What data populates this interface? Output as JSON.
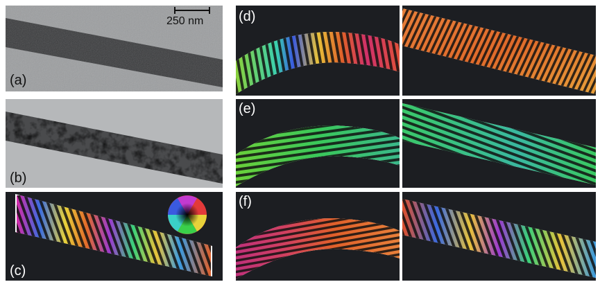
{
  "figure": {
    "panels": {
      "a": {
        "label": "(a)"
      },
      "b": {
        "label": "(b)"
      },
      "c": {
        "label": "(c)"
      },
      "d": {
        "label": "(d)"
      },
      "e": {
        "label": "(e)"
      },
      "f": {
        "label": "(f)"
      }
    },
    "scale_bar": {
      "text": "250 nm"
    },
    "colors": {
      "tem_background": "#9a9c9e",
      "tem_background_b": "#b4b6b8",
      "strip_dark": "#3c3d3f",
      "holography_background": "#1c1e22",
      "fringe_dark": "#111111"
    },
    "icons": {
      "color_wheel": "color-wheel-icon",
      "scale_bar": "scale-bar-icon"
    }
  }
}
